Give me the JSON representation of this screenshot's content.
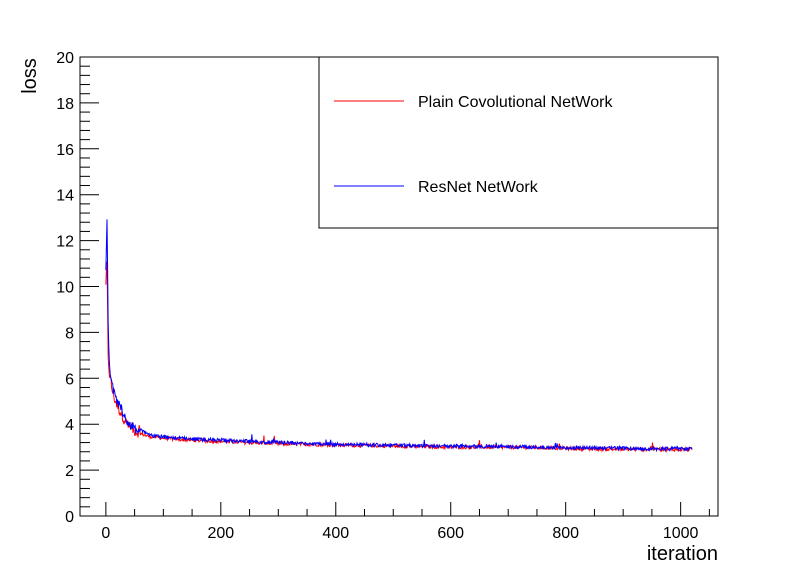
{
  "chart_data": {
    "type": "line",
    "xlabel": "iteration",
    "ylabel": "loss",
    "xlim": [
      -45,
      1065
    ],
    "ylim": [
      0,
      20
    ],
    "x_ticks": [
      "0",
      "200",
      "400",
      "600",
      "800",
      "1000"
    ],
    "y_ticks": [
      "0",
      "2",
      "4",
      "6",
      "8",
      "10",
      "12",
      "14",
      "16",
      "18",
      "20"
    ],
    "legend_placement": "top-right",
    "grid": false,
    "series": [
      {
        "name": "Plain Covolutional NetWork",
        "color": "#ff0000",
        "x": [
          0,
          2,
          4,
          6,
          8,
          10,
          15,
          20,
          30,
          40,
          50,
          60,
          70,
          80,
          100,
          120,
          150,
          200,
          250,
          300,
          400,
          500,
          600,
          700,
          800,
          900,
          1000,
          1020
        ],
        "y": [
          10.0,
          11.0,
          6.8,
          6.3,
          6.0,
          5.6,
          5.1,
          4.8,
          4.3,
          3.9,
          3.7,
          3.6,
          3.5,
          3.45,
          3.4,
          3.35,
          3.3,
          3.25,
          3.2,
          3.15,
          3.1,
          3.05,
          3.0,
          3.0,
          2.95,
          2.9,
          2.9,
          2.9
        ]
      },
      {
        "name": "ResNet NetWork",
        "color": "#0000ff",
        "x": [
          0,
          2,
          4,
          6,
          8,
          10,
          15,
          20,
          30,
          40,
          50,
          60,
          70,
          80,
          100,
          120,
          150,
          200,
          250,
          300,
          400,
          500,
          600,
          700,
          800,
          900,
          1000,
          1020
        ],
        "y": [
          10.5,
          13.0,
          8.6,
          6.8,
          6.2,
          5.7,
          5.3,
          5.0,
          4.5,
          4.0,
          3.8,
          3.75,
          3.6,
          3.5,
          3.45,
          3.4,
          3.35,
          3.3,
          3.25,
          3.2,
          3.12,
          3.08,
          3.05,
          3.02,
          2.98,
          2.95,
          2.92,
          2.92
        ]
      }
    ]
  }
}
